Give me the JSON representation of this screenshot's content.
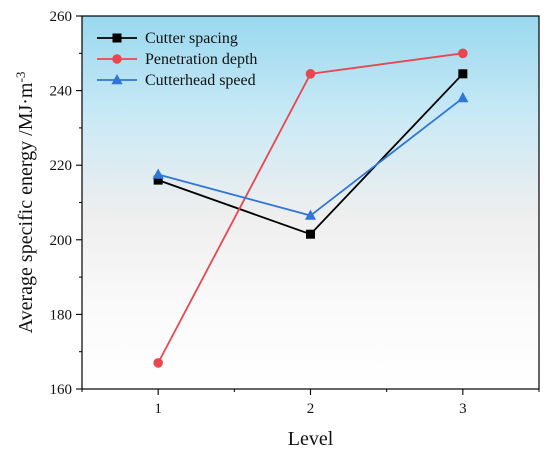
{
  "chart_data": {
    "type": "line",
    "title": "",
    "xlabel": "Level",
    "ylabel_main": "Average specific energy /MJ·m",
    "ylabel_sup": "-3",
    "x": [
      1,
      2,
      3
    ],
    "x_tick_labels": [
      "1",
      "2",
      "3"
    ],
    "xlim": [
      0.5,
      3.5
    ],
    "ylim": [
      160,
      260
    ],
    "y_ticks": [
      160,
      180,
      200,
      220,
      240,
      260
    ],
    "y_tick_labels": [
      "160",
      "180",
      "200",
      "220",
      "240",
      "260"
    ],
    "grid": false,
    "legend_position": "top-left",
    "background": "vertical gradient from light blue at top to white at bottom",
    "series": [
      {
        "name": "Cutter spacing",
        "values": [
          216,
          201.5,
          244.5
        ],
        "color": "#000000",
        "marker": "square"
      },
      {
        "name": "Penetration depth",
        "values": [
          167,
          244.5,
          250
        ],
        "color": "#e8474f",
        "marker": "circle"
      },
      {
        "name": "Cutterhead speed",
        "values": [
          217.5,
          206.5,
          238
        ],
        "color": "#2f76d6",
        "marker": "triangle"
      }
    ]
  }
}
